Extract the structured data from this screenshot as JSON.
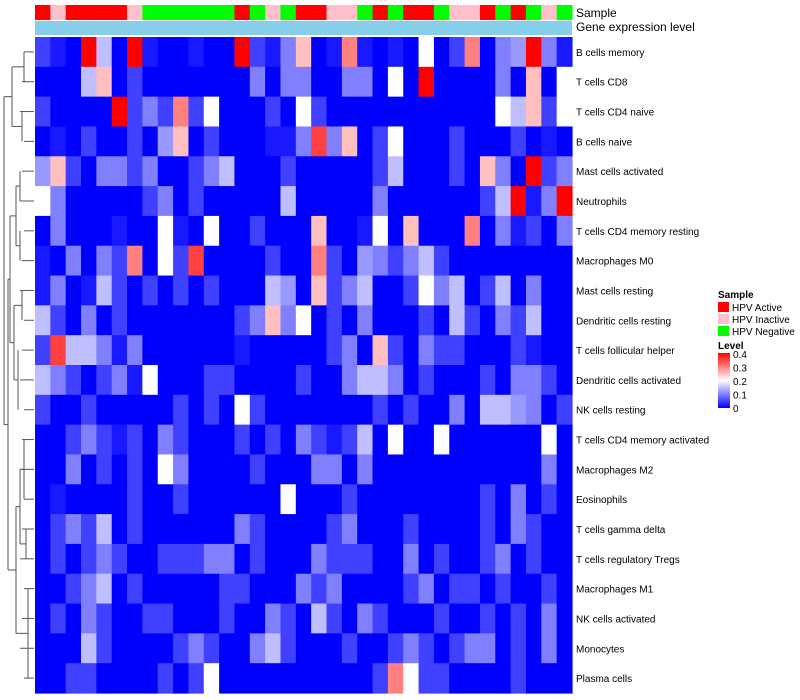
{
  "chart_data": {
    "type": "heatmap",
    "annotation_labels": [
      "Sample",
      "Gene expression level"
    ],
    "sample_groups": [
      "A",
      "I",
      "A",
      "A",
      "A",
      "A",
      "I",
      "N",
      "N",
      "N",
      "N",
      "N",
      "N",
      "A",
      "N",
      "I",
      "N",
      "A",
      "A",
      "I",
      "I",
      "N",
      "A",
      "N",
      "A",
      "A",
      "N",
      "I",
      "I",
      "A",
      "N",
      "A",
      "N",
      "I",
      "N"
    ],
    "rows": [
      "B cells memory",
      "T cells CD8",
      "T cells CD4 naive",
      "B cells naive",
      "Mast cells activated",
      "Neutrophils",
      "T cells CD4 memory resting",
      "Macrophages M0",
      "Mast cells resting",
      "Dendritic cells resting",
      "T cells follicular helper",
      "Dendritic cells activated",
      "NK cells resting",
      "T cells CD4 memory activated",
      "Macrophages M2",
      "Eosinophils",
      "T cells gamma delta",
      "T cells regulatory  Tregs",
      "Macrophages M1",
      "NK cells activated",
      "Monocytes",
      "Plasma cells"
    ],
    "values": [
      [
        0.05,
        0.02,
        0.0,
        0.4,
        0.15,
        0.0,
        0.4,
        0.02,
        0.0,
        0.0,
        0.02,
        0.0,
        0.0,
        0.4,
        0.05,
        0.02,
        0.1,
        0.25,
        0.0,
        0.02,
        0.3,
        0.02,
        0.0,
        0.02,
        0.0,
        0.2,
        0.0,
        0.05,
        0.3,
        0.0,
        0.1,
        0.12,
        0.4,
        0.1,
        0.02
      ],
      [
        0.0,
        0.0,
        0.0,
        0.15,
        0.25,
        0.0,
        0.05,
        0.0,
        0.0,
        0.0,
        0.0,
        0.0,
        0.0,
        0.0,
        0.1,
        0.0,
        0.1,
        0.1,
        0.0,
        0.0,
        0.1,
        0.1,
        0.0,
        0.2,
        0.0,
        0.4,
        0.0,
        0.0,
        0.0,
        0.0,
        0.1,
        0.0,
        0.25,
        0.0,
        0.2
      ],
      [
        0.05,
        0.0,
        0.0,
        0.0,
        0.0,
        0.4,
        0.05,
        0.1,
        0.05,
        0.3,
        0.05,
        0.2,
        0.0,
        0.0,
        0.0,
        0.05,
        0.0,
        0.2,
        0.05,
        0.0,
        0.0,
        0.0,
        0.0,
        0.0,
        0.0,
        0.0,
        0.0,
        0.0,
        0.0,
        0.0,
        0.2,
        0.15,
        0.25,
        0.05,
        0.2
      ],
      [
        0.0,
        0.02,
        0.0,
        0.05,
        0.0,
        0.0,
        0.05,
        0.0,
        0.12,
        0.25,
        0.0,
        0.05,
        0.0,
        0.0,
        0.0,
        0.02,
        0.02,
        0.1,
        0.35,
        0.1,
        0.25,
        0.0,
        0.05,
        0.2,
        0.0,
        0.0,
        0.0,
        0.05,
        0.0,
        0.0,
        0.0,
        0.05,
        0.0,
        0.02,
        0.0
      ],
      [
        0.12,
        0.25,
        0.05,
        0.0,
        0.1,
        0.1,
        0.05,
        0.1,
        0.0,
        0.0,
        0.05,
        0.1,
        0.15,
        0.0,
        0.0,
        0.0,
        0.05,
        0.0,
        0.0,
        0.0,
        0.0,
        0.0,
        0.05,
        0.15,
        0.0,
        0.0,
        0.0,
        0.05,
        0.0,
        0.25,
        0.1,
        0.0,
        0.4,
        0.05,
        0.1
      ],
      [
        0.2,
        0.1,
        0.0,
        0.0,
        0.0,
        0.0,
        0.0,
        0.05,
        0.1,
        0.0,
        0.05,
        0.0,
        0.0,
        0.0,
        0.0,
        0.0,
        0.15,
        0.0,
        0.0,
        0.0,
        0.0,
        0.0,
        0.1,
        0.0,
        0.0,
        0.0,
        0.0,
        0.0,
        0.0,
        0.05,
        0.15,
        0.4,
        0.02,
        0.1,
        0.4
      ],
      [
        0.0,
        0.1,
        0.0,
        0.0,
        0.0,
        0.02,
        0.0,
        0.0,
        0.2,
        0.02,
        0.0,
        0.2,
        0.0,
        0.0,
        0.05,
        0.0,
        0.0,
        0.0,
        0.25,
        0.0,
        0.0,
        0.02,
        0.2,
        0.0,
        0.25,
        0.0,
        0.0,
        0.0,
        0.3,
        0.0,
        0.1,
        0.02,
        0.05,
        0.0,
        0.1
      ],
      [
        0.02,
        0.0,
        0.1,
        0.0,
        0.1,
        0.05,
        0.3,
        0.0,
        0.2,
        0.05,
        0.35,
        0.0,
        0.0,
        0.0,
        0.0,
        0.05,
        0.0,
        0.0,
        0.3,
        0.05,
        0.0,
        0.12,
        0.1,
        0.05,
        0.1,
        0.15,
        0.05,
        0.0,
        0.0,
        0.0,
        0.0,
        0.0,
        0.0,
        0.0,
        0.0
      ],
      [
        0.02,
        0.1,
        0.0,
        0.02,
        0.15,
        0.05,
        0.0,
        0.05,
        0.0,
        0.05,
        0.0,
        0.05,
        0.0,
        0.0,
        0.0,
        0.15,
        0.12,
        0.0,
        0.25,
        0.05,
        0.1,
        0.15,
        0.0,
        0.0,
        0.05,
        0.2,
        0.1,
        0.15,
        0.0,
        0.05,
        0.15,
        0.0,
        0.1,
        0.0,
        0.0
      ],
      [
        0.15,
        0.05,
        0.0,
        0.1,
        0.0,
        0.05,
        0.0,
        0.0,
        0.0,
        0.0,
        0.0,
        0.0,
        0.0,
        0.05,
        0.1,
        0.25,
        0.1,
        0.2,
        0.0,
        0.05,
        0.0,
        0.1,
        0.0,
        0.0,
        0.0,
        0.05,
        0.0,
        0.15,
        0.05,
        0.0,
        0.1,
        0.05,
        0.15,
        0.0,
        0.0
      ],
      [
        0.05,
        0.35,
        0.15,
        0.15,
        0.1,
        0.02,
        0.1,
        0.0,
        0.0,
        0.0,
        0.0,
        0.0,
        0.0,
        0.02,
        0.0,
        0.0,
        0.0,
        0.0,
        0.0,
        0.05,
        0.1,
        0.0,
        0.25,
        0.05,
        0.0,
        0.1,
        0.05,
        0.05,
        0.0,
        0.0,
        0.0,
        0.05,
        0.02,
        0.0,
        0.0
      ],
      [
        0.15,
        0.1,
        0.05,
        0.0,
        0.05,
        0.1,
        0.02,
        0.2,
        0.0,
        0.0,
        0.0,
        0.05,
        0.05,
        0.0,
        0.0,
        0.0,
        0.0,
        0.05,
        0.0,
        0.0,
        0.1,
        0.15,
        0.15,
        0.1,
        0.0,
        0.05,
        0.0,
        0.0,
        0.0,
        0.05,
        0.0,
        0.1,
        0.1,
        0.05,
        0.0
      ],
      [
        0.05,
        0.0,
        0.0,
        0.05,
        0.0,
        0.0,
        0.0,
        0.0,
        0.0,
        0.05,
        0.0,
        0.05,
        0.0,
        0.2,
        0.05,
        0.0,
        0.0,
        0.0,
        0.0,
        0.0,
        0.0,
        0.0,
        0.05,
        0.0,
        0.05,
        0.0,
        0.0,
        0.1,
        0.0,
        0.15,
        0.15,
        0.12,
        0.1,
        0.0,
        0.05
      ],
      [
        0.0,
        0.0,
        0.05,
        0.1,
        0.05,
        0.02,
        0.05,
        0.0,
        0.1,
        0.05,
        0.0,
        0.0,
        0.0,
        0.05,
        0.0,
        0.05,
        0.0,
        0.1,
        0.05,
        0.02,
        0.05,
        0.15,
        0.0,
        0.2,
        0.0,
        0.0,
        0.2,
        0.0,
        0.0,
        0.0,
        0.0,
        0.0,
        0.0,
        0.2,
        0.0
      ],
      [
        0.0,
        0.0,
        0.1,
        0.0,
        0.05,
        0.0,
        0.05,
        0.0,
        0.2,
        0.1,
        0.0,
        0.0,
        0.0,
        0.0,
        0.05,
        0.0,
        0.0,
        0.0,
        0.1,
        0.1,
        0.0,
        0.1,
        0.0,
        0.0,
        0.0,
        0.0,
        0.0,
        0.0,
        0.0,
        0.0,
        0.0,
        0.0,
        0.0,
        0.1,
        0.0
      ],
      [
        0.0,
        0.02,
        0.0,
        0.0,
        0.0,
        0.0,
        0.05,
        0.0,
        0.0,
        0.05,
        0.0,
        0.0,
        0.0,
        0.0,
        0.0,
        0.0,
        0.2,
        0.0,
        0.0,
        0.0,
        0.05,
        0.0,
        0.0,
        0.0,
        0.0,
        0.0,
        0.0,
        0.0,
        0.0,
        0.05,
        0.0,
        0.1,
        0.0,
        0.05,
        0.0
      ],
      [
        0.0,
        0.05,
        0.1,
        0.05,
        0.15,
        0.0,
        0.05,
        0.0,
        0.0,
        0.0,
        0.0,
        0.0,
        0.0,
        0.1,
        0.05,
        0.0,
        0.0,
        0.0,
        0.0,
        0.05,
        0.1,
        0.0,
        0.0,
        0.0,
        0.05,
        0.0,
        0.0,
        0.0,
        0.0,
        0.05,
        0.0,
        0.1,
        0.05,
        0.0,
        0.0
      ],
      [
        0.0,
        0.05,
        0.0,
        0.05,
        0.1,
        0.05,
        0.0,
        0.0,
        0.05,
        0.05,
        0.05,
        0.1,
        0.1,
        0.0,
        0.05,
        0.0,
        0.0,
        0.0,
        0.1,
        0.05,
        0.05,
        0.05,
        0.0,
        0.0,
        0.1,
        0.0,
        0.05,
        0.0,
        0.0,
        0.05,
        0.1,
        0.0,
        0.05,
        0.0,
        0.0
      ],
      [
        0.0,
        0.0,
        0.05,
        0.1,
        0.15,
        0.0,
        0.05,
        0.0,
        0.0,
        0.0,
        0.0,
        0.0,
        0.05,
        0.05,
        0.0,
        0.0,
        0.0,
        0.1,
        0.05,
        0.1,
        0.0,
        0.0,
        0.0,
        0.0,
        0.05,
        0.1,
        0.0,
        0.05,
        0.05,
        0.0,
        0.05,
        0.0,
        0.0,
        0.05,
        0.0
      ],
      [
        0.0,
        0.05,
        0.0,
        0.1,
        0.05,
        0.0,
        0.0,
        0.05,
        0.05,
        0.0,
        0.0,
        0.0,
        0.05,
        0.0,
        0.0,
        0.1,
        0.05,
        0.0,
        0.15,
        0.05,
        0.0,
        0.1,
        0.05,
        0.0,
        0.0,
        0.0,
        0.05,
        0.0,
        0.0,
        0.05,
        0.0,
        0.05,
        0.0,
        0.1,
        0.0
      ],
      [
        0.0,
        0.0,
        0.0,
        0.15,
        0.05,
        0.0,
        0.0,
        0.0,
        0.0,
        0.05,
        0.1,
        0.05,
        0.0,
        0.0,
        0.1,
        0.15,
        0.05,
        0.0,
        0.0,
        0.0,
        0.05,
        0.0,
        0.0,
        0.05,
        0.1,
        0.05,
        0.0,
        0.05,
        0.1,
        0.1,
        0.0,
        0.05,
        0.0,
        0.1,
        0.0
      ],
      [
        0.0,
        0.0,
        0.05,
        0.05,
        0.0,
        0.0,
        0.0,
        0.0,
        0.05,
        0.0,
        0.05,
        0.2,
        0.0,
        0.0,
        0.0,
        0.0,
        0.0,
        0.0,
        0.0,
        0.0,
        0.0,
        0.0,
        0.05,
        0.3,
        0.2,
        0.05,
        0.05,
        0.0,
        0.0,
        0.0,
        0.0,
        0.05,
        0.0,
        0.0,
        0.0
      ]
    ],
    "legend_sample": {
      "title": "Sample",
      "items": [
        {
          "label": "HPV Active",
          "color": "#ff0000"
        },
        {
          "label": "HPV Inactive",
          "color": "#ffc0cb"
        },
        {
          "label": "HPV Negative",
          "color": "#00ff00"
        }
      ]
    },
    "legend_level": {
      "title": "Level",
      "ticks": [
        "0.4",
        "0.3",
        "0.2",
        "0.1",
        "0"
      ],
      "tick_values": [
        0.4,
        0.3,
        0.2,
        0.1,
        0
      ],
      "range": [
        0,
        0.4
      ]
    },
    "colors": {
      "low": "#0000ff",
      "mid": "#ffffff",
      "high": "#ff0000",
      "annotation_level": "#87ceeb"
    }
  }
}
